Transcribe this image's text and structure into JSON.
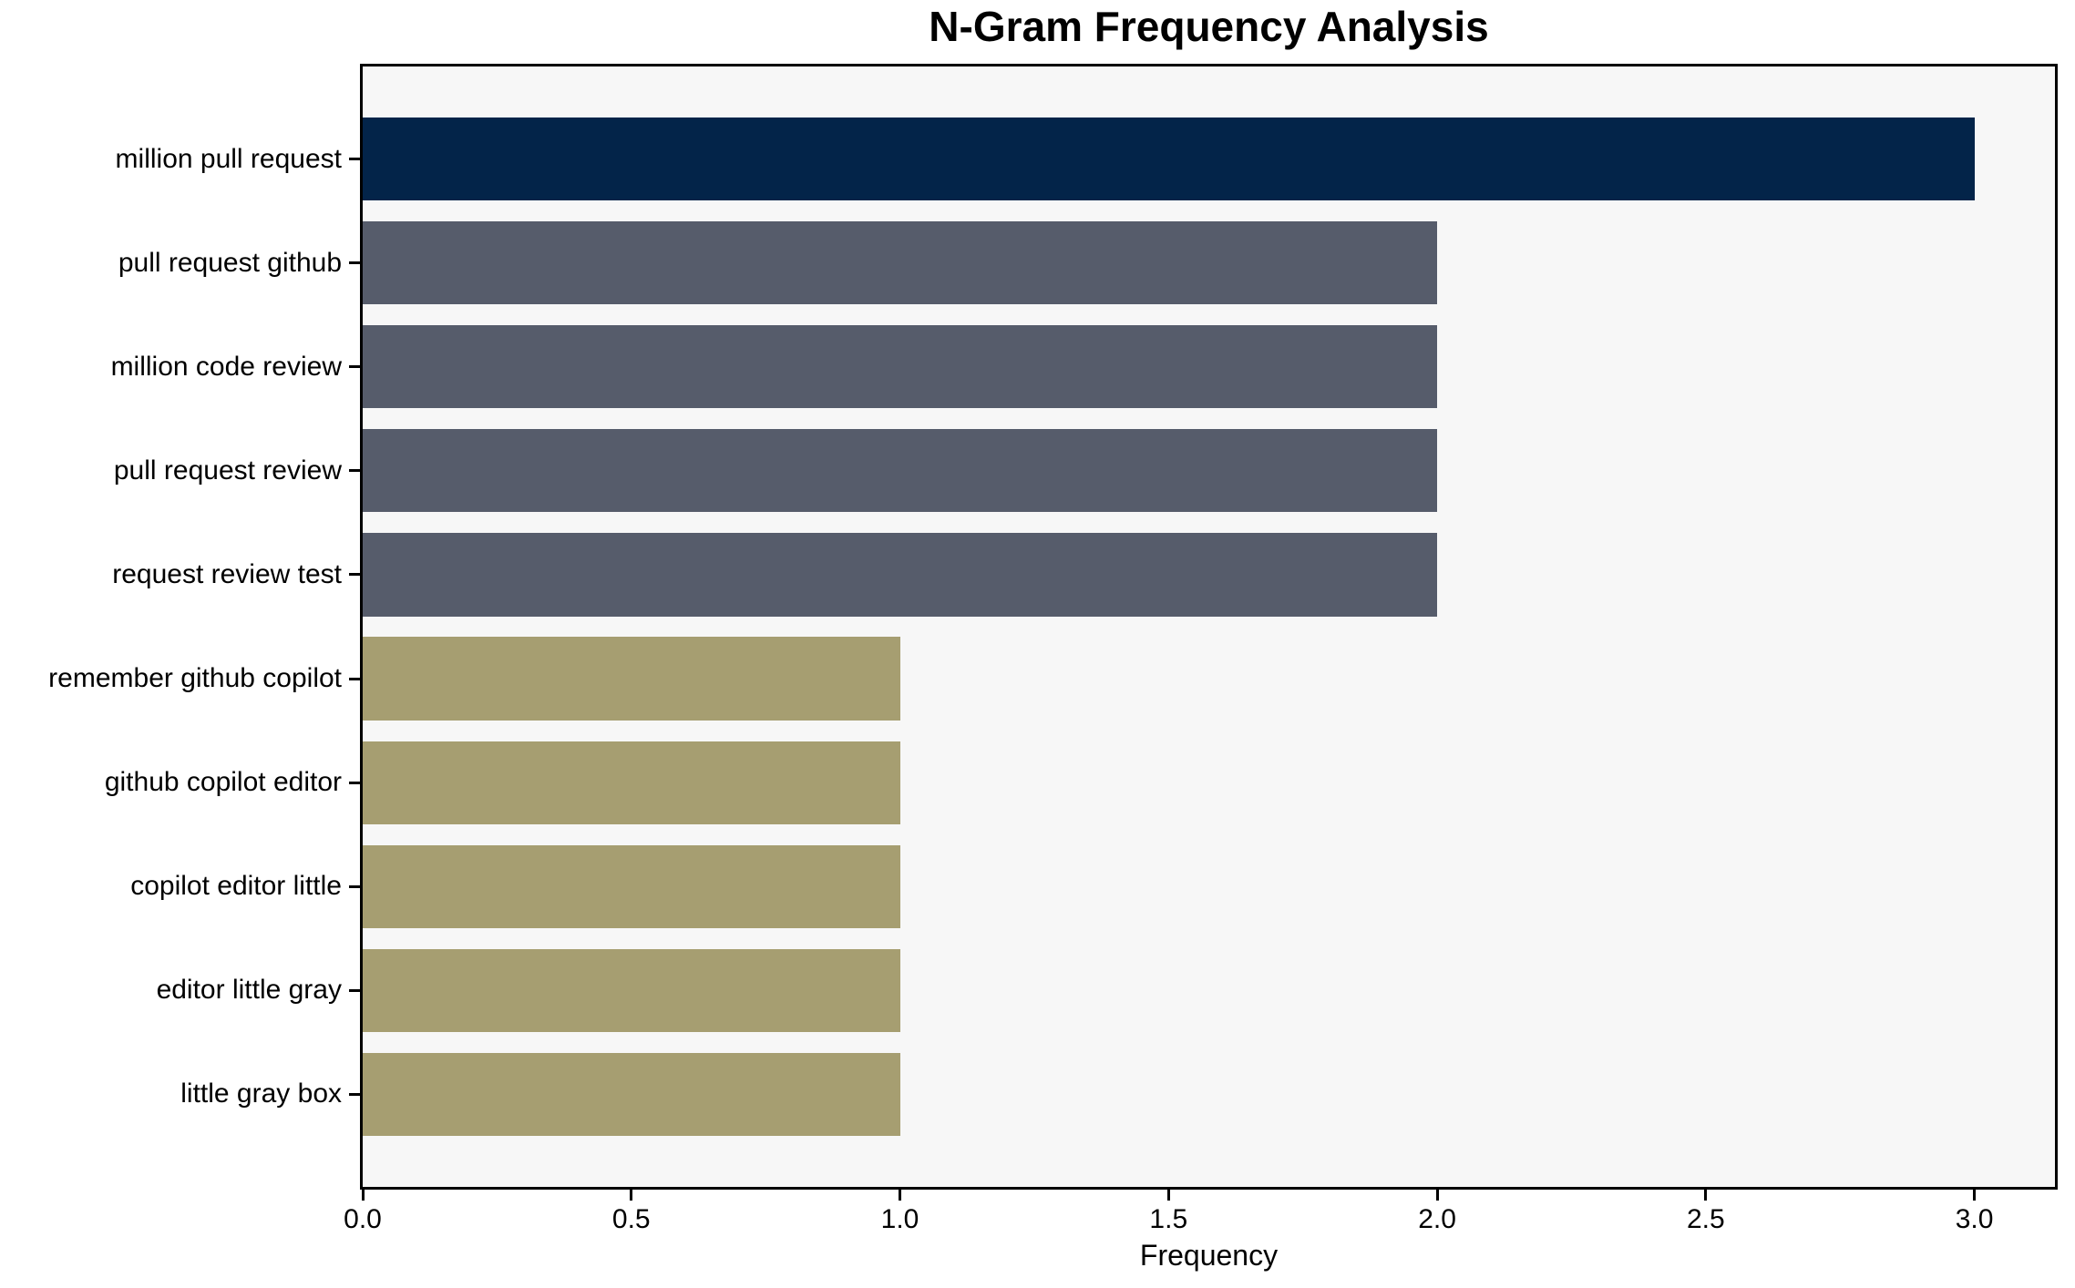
{
  "chart_data": {
    "type": "bar",
    "orientation": "horizontal",
    "title": "N-Gram Frequency Analysis",
    "xlabel": "Frequency",
    "ylabel": "",
    "categories": [
      "million pull request",
      "pull request github",
      "million code review",
      "pull request review",
      "request review test",
      "remember github copilot",
      "github copilot editor",
      "copilot editor little",
      "editor little gray",
      "little gray box"
    ],
    "values": [
      3,
      2,
      2,
      2,
      2,
      1,
      1,
      1,
      1,
      1
    ],
    "bar_colors": [
      "#032449",
      "#565c6b",
      "#565c6b",
      "#565c6b",
      "#565c6b",
      "#a69e71",
      "#a69e71",
      "#a69e71",
      "#a69e71",
      "#a69e71"
    ],
    "xticks": {
      "values": [
        0,
        0.5,
        1.0,
        1.5,
        2.0,
        2.5,
        3.0
      ],
      "labels": [
        "0.0",
        "0.5",
        "1.0",
        "1.5",
        "2.0",
        "2.5",
        "3.0"
      ]
    },
    "xlim": [
      0,
      3.15
    ],
    "grid": false,
    "legend_position": "none"
  },
  "colors": {
    "highlight_bar": "#032449",
    "mid_bar": "#565c6b",
    "low_bar": "#a69e71",
    "plot_background": "#f7f7f7",
    "figure_background": "#ffffff",
    "axis": "#000000"
  }
}
